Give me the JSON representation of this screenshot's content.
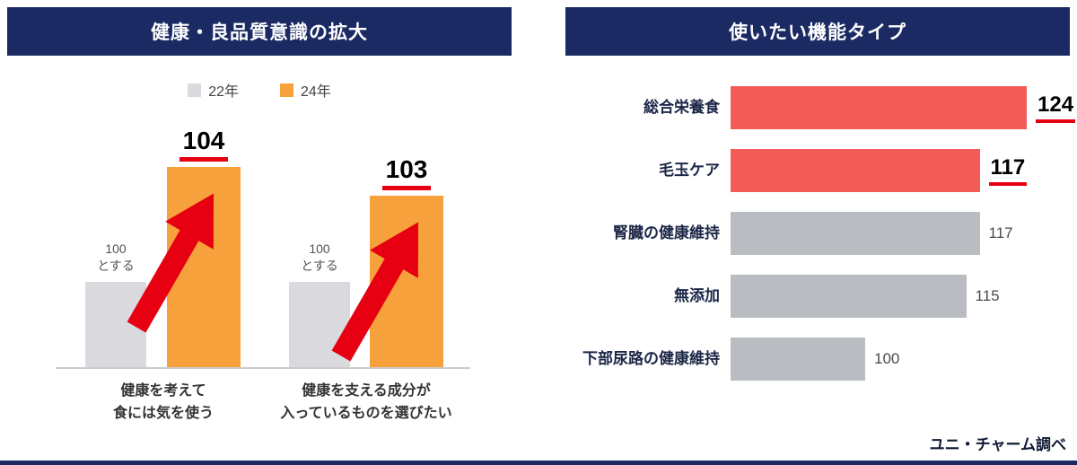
{
  "page": {
    "source_note": "ユニ・チャーム調べ",
    "colors": {
      "navy": "#1b2a63",
      "orange": "#f6a13b",
      "light_gray": "#d9d9de",
      "mid_gray": "#b9bcc1",
      "red_bar": "#f25b57",
      "accent_red": "#e60012"
    }
  },
  "left_panel": {
    "title": "健康・良品質意識の拡大",
    "legend": [
      {
        "label": "22年",
        "color": "#d9d9de"
      },
      {
        "label": "24年",
        "color": "#f6a13b"
      }
    ],
    "baseline_note": "100\nとする"
  },
  "right_panel": {
    "title": "使いたい機能タイプ"
  },
  "chart_data": [
    {
      "type": "bar",
      "title": "健康・良品質意識の拡大",
      "categories": [
        "健康を考えて\n食には気を使う",
        "健康を支える成分が\n入っているものを選びたい"
      ],
      "series": [
        {
          "name": "22年",
          "values": [
            100,
            100
          ],
          "color": "#d9d9de"
        },
        {
          "name": "24年",
          "values": [
            104,
            103
          ],
          "color": "#f6a13b"
        }
      ],
      "ylim": [
        97,
        105
      ],
      "annotations": [
        "100 とする (baseline = 100)",
        "red increase arrows"
      ],
      "legend_position": "top"
    },
    {
      "type": "bar",
      "orientation": "horizontal",
      "title": "使いたい機能タイプ",
      "categories": [
        "総合栄養食",
        "毛玉ケア",
        "腎臓の健康維持",
        "無添加",
        "下部尿路の健康維持"
      ],
      "values": [
        124,
        117,
        117,
        115,
        100
      ],
      "highlighted": [
        true,
        true,
        false,
        false,
        false
      ],
      "bar_colors": [
        "#f25b57",
        "#f25b57",
        "#b9bcc1",
        "#b9bcc1",
        "#b9bcc1"
      ],
      "xlim": [
        80,
        124
      ],
      "grid": false
    }
  ]
}
